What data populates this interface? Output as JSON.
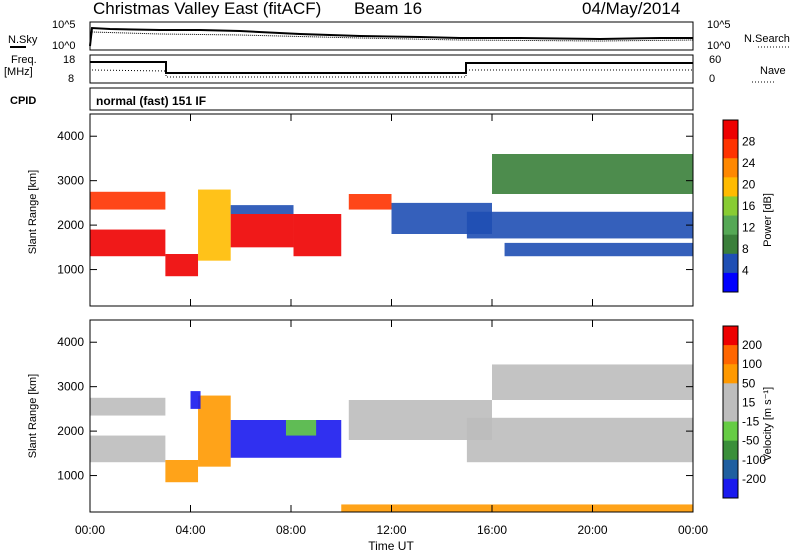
{
  "header": {
    "title": "Christmas Valley East (fitACF)",
    "beam": "Beam 16",
    "date": "04/May/2014"
  },
  "status_panels": {
    "nsky_label": "N.Sky",
    "nsearch_label": "N.Search",
    "nsky_ticks": [
      "10^5",
      "10^0"
    ],
    "nsearch_ticks": [
      "10^5",
      "10^0"
    ],
    "freq_label_1": "Freq.",
    "freq_label_2": "[MHz]",
    "freq_ticks": [
      "18",
      "8"
    ],
    "nave_label": "Nave",
    "nave_ticks": [
      "60",
      "0"
    ],
    "cpid_label": "CPID",
    "cpid_value": "normal (fast) 151 IF"
  },
  "colors": {
    "power": [
      "#0000ff",
      "#1f4fb4",
      "#3a7f3a",
      "#55a855",
      "#88cc33",
      "#ffbb00",
      "#ff8800",
      "#ff3300",
      "#ee0000"
    ],
    "velocity": [
      "#1a1aee",
      "#1f5fa0",
      "#3a8f3a",
      "#66cc44",
      "#bdbdbd",
      "#bdbdbd",
      "#ff9900",
      "#ff6600",
      "#ee0000"
    ]
  },
  "chart_data": [
    {
      "type": "heatmap",
      "panel": "power",
      "xlabel": "",
      "ylabel": "Slant Range [km]",
      "ylim": [
        180,
        4500
      ],
      "y_ticks": [
        1000,
        2000,
        3000,
        4000
      ],
      "colorbar_label": "Power [dB]",
      "colorbar_ticks": [
        "28",
        "24",
        "20",
        "16",
        "12",
        "8",
        "4"
      ],
      "bands": [
        {
          "x0": 0.0,
          "x1": 3.0,
          "y0": 1300,
          "y1": 1900,
          "level": 8
        },
        {
          "x0": 0.0,
          "x1": 3.0,
          "y0": 2350,
          "y1": 2750,
          "level": 7
        },
        {
          "x0": 3.0,
          "x1": 4.3,
          "y0": 850,
          "y1": 1350,
          "level": 8
        },
        {
          "x0": 4.3,
          "x1": 5.6,
          "y0": 1200,
          "y1": 2800,
          "level": 5
        },
        {
          "x0": 5.6,
          "x1": 8.1,
          "y0": 1500,
          "y1": 2250,
          "level": 8
        },
        {
          "x0": 5.6,
          "x1": 8.1,
          "y0": 2250,
          "y1": 2450,
          "level": 1
        },
        {
          "x0": 8.1,
          "x1": 10.0,
          "y0": 1300,
          "y1": 2250,
          "level": 8
        },
        {
          "x0": 10.3,
          "x1": 12.0,
          "y0": 2350,
          "y1": 2700,
          "level": 7
        },
        {
          "x0": 12.0,
          "x1": 16.0,
          "y0": 1800,
          "y1": 2500,
          "level": 1
        },
        {
          "x0": 16.0,
          "x1": 24.0,
          "y0": 2700,
          "y1": 3600,
          "level": 2
        },
        {
          "x0": 15.0,
          "x1": 24.0,
          "y0": 1700,
          "y1": 2300,
          "level": 1
        },
        {
          "x0": 16.5,
          "x1": 24.0,
          "y0": 1300,
          "y1": 1600,
          "level": 1
        }
      ]
    },
    {
      "type": "heatmap",
      "panel": "velocity",
      "xlabel": "Time UT",
      "ylabel": "Slant Range [km]",
      "ylim": [
        180,
        4500
      ],
      "y_ticks": [
        1000,
        2000,
        3000,
        4000
      ],
      "x_ticks": [
        "00:00",
        "04:00",
        "08:00",
        "12:00",
        "16:00",
        "20:00",
        "00:00"
      ],
      "x_tick_hours": [
        0,
        4,
        8,
        12,
        16,
        20,
        24
      ],
      "colorbar_label": "Velocity [m s⁻¹]",
      "colorbar_ticks": [
        "200",
        "100",
        "50",
        "15",
        "-15",
        "-50",
        "-100",
        "-200"
      ],
      "bands": [
        {
          "x0": 0.0,
          "x1": 3.0,
          "y0": 1300,
          "y1": 1900,
          "level": 4
        },
        {
          "x0": 0.0,
          "x1": 3.0,
          "y0": 2350,
          "y1": 2750,
          "level": 4
        },
        {
          "x0": 3.0,
          "x1": 4.3,
          "y0": 850,
          "y1": 1350,
          "level": 6
        },
        {
          "x0": 4.3,
          "x1": 5.6,
          "y0": 1200,
          "y1": 2800,
          "level": 6
        },
        {
          "x0": 4.0,
          "x1": 4.4,
          "y0": 2500,
          "y1": 2900,
          "level": 0
        },
        {
          "x0": 5.6,
          "x1": 10.0,
          "y0": 1400,
          "y1": 2250,
          "level": 0
        },
        {
          "x0": 7.8,
          "x1": 9.0,
          "y0": 1900,
          "y1": 2250,
          "level": 3
        },
        {
          "x0": 10.3,
          "x1": 16.0,
          "y0": 1800,
          "y1": 2700,
          "level": 4
        },
        {
          "x0": 16.0,
          "x1": 24.0,
          "y0": 2700,
          "y1": 3500,
          "level": 4
        },
        {
          "x0": 15.0,
          "x1": 24.0,
          "y0": 1300,
          "y1": 2300,
          "level": 4
        },
        {
          "x0": 10.0,
          "x1": 24.0,
          "y0": 180,
          "y1": 350,
          "level": 6
        }
      ]
    }
  ]
}
